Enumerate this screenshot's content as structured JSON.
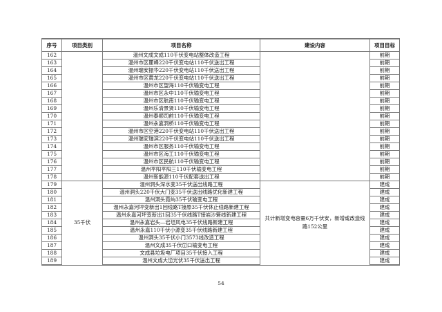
{
  "headers": [
    "序号",
    "项目类别",
    "项目名称",
    "建设内容",
    "项目目标"
  ],
  "rows": [
    {
      "no": "162",
      "name": "温州文成文成110千伏变电站整体改造工程",
      "target": "前期"
    },
    {
      "no": "163",
      "name": "温州市区瞿峰220千伏变电站110千伏送出工程",
      "target": "前期"
    },
    {
      "no": "164",
      "name": "温州瑞安振华220千伏变电站110千伏送出工程",
      "target": "前期"
    },
    {
      "no": "165",
      "name": "温州市区黄龙220千伏变电站110千伏送出工程",
      "target": "前期"
    },
    {
      "no": "166",
      "name": "温州市区望海110千伏输变电工程",
      "target": "前期"
    },
    {
      "no": "167",
      "name": "温州市区永中110千伏输变电工程",
      "target": "前期"
    },
    {
      "no": "168",
      "name": "温州市区航南110千伏输变电工程",
      "target": "前期"
    },
    {
      "no": "169",
      "name": "温州乐清景贤110千伏输变电工程",
      "target": "前期"
    },
    {
      "no": "170",
      "name": "温州泰顺司前110千伏输变电工程",
      "target": "前期"
    },
    {
      "no": "171",
      "name": "温州永嘉洞桥110千伏输变电工程",
      "target": "前期"
    },
    {
      "no": "172",
      "name": "温州市区空港220千伏变电站110千伏送出工程",
      "target": "前期"
    },
    {
      "no": "173",
      "name": "温州瑞安瑞滨220千伏变电站110千伏送出工程",
      "target": "前期"
    },
    {
      "no": "174",
      "name": "温州市区服务110千伏输变电工程",
      "target": "前期"
    },
    {
      "no": "175",
      "name": "温州市区海工110千伏输变电工程",
      "target": "前期"
    },
    {
      "no": "176",
      "name": "温州市区民航110千伏输变电工程",
      "target": "前期"
    },
    {
      "no": "177",
      "name": "温州平阳平阳三110千伏输变电工程",
      "target": "前期"
    },
    {
      "no": "178",
      "name": "温州新能源110千伏配套送出工程",
      "target": "前期"
    },
    {
      "no": "179",
      "name": "温州洞头深水变35千伏送出线路工程",
      "target": "建成"
    },
    {
      "no": "180",
      "name": "温州洞头220千伏大门变35千伏送出线路优化新建工程",
      "target": "建成"
    },
    {
      "no": "181",
      "name": "温州洞头霓屿35千伏输变电工程",
      "target": "建成"
    },
    {
      "no": "182",
      "name": "温州永嘉河坪变新出1回线路T接原35千伏休止线路新建工程",
      "target": "建成"
    },
    {
      "no": "183",
      "name": "温州永嘉河坪变新出1回35千伏线路T接岩沙箬线新建工程",
      "target": "建成"
    },
    {
      "no": "184",
      "name": "温州永嘉岩头—岩坦风电35千伏线路新建工程",
      "target": "建成"
    },
    {
      "no": "185",
      "name": "温州永嘉110千伏小源变35千伏线路新建工程",
      "target": "建成"
    },
    {
      "no": "186",
      "name": "温州洞头35千伏小门3573线改造工程",
      "target": "建成"
    },
    {
      "no": "187",
      "name": "温州文成35千伏峃口输变电工程",
      "target": "建成"
    },
    {
      "no": "188",
      "name": "文成县垃圾电厂项目35千伏接入工程",
      "target": "建成"
    },
    {
      "no": "189",
      "name": "温州文成大峃光伏35千伏送出工程",
      "target": "建成"
    }
  ],
  "group_35kv": {
    "category": "35千伏",
    "content": "共计新增变电容量6万千伏安，新增或改造线路152公里"
  },
  "page_number": "54"
}
